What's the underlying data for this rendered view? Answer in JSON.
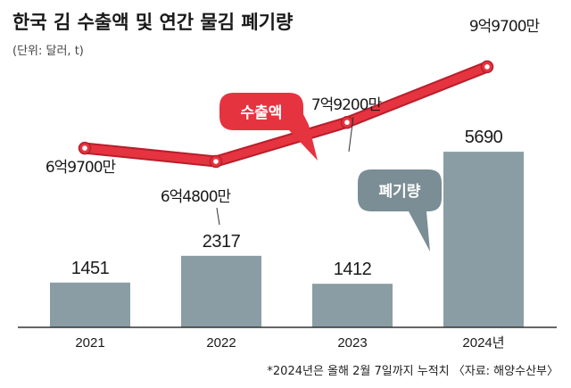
{
  "title": "한국 김 수출액 및 연간 물김 폐기량",
  "unit": "(단위: 달러, t)",
  "note": "*2024년은 올해 2월 7일까지 누적치 〈자료: 해양수산부〉",
  "colors": {
    "bar": "#8a9da5",
    "line": "#e63340",
    "line_outline": "#b81f2b",
    "baseline": "#333333"
  },
  "chart_data": {
    "type": "bar+line",
    "categories": [
      "2021",
      "2022",
      "2023",
      "2024년"
    ],
    "series": [
      {
        "name": "수출액",
        "type": "line",
        "values": [
          697000000,
          648000000,
          792000000,
          997000000
        ],
        "labels": [
          "6억9700만",
          "6억4800만",
          "7억9200만",
          "9억9700만"
        ],
        "callout": "수출액"
      },
      {
        "name": "폐기량",
        "type": "bar",
        "values": [
          1451,
          2317,
          1412,
          5690
        ],
        "labels": [
          "1451",
          "2317",
          "1412",
          "5690"
        ],
        "callout": "폐기량"
      }
    ]
  }
}
